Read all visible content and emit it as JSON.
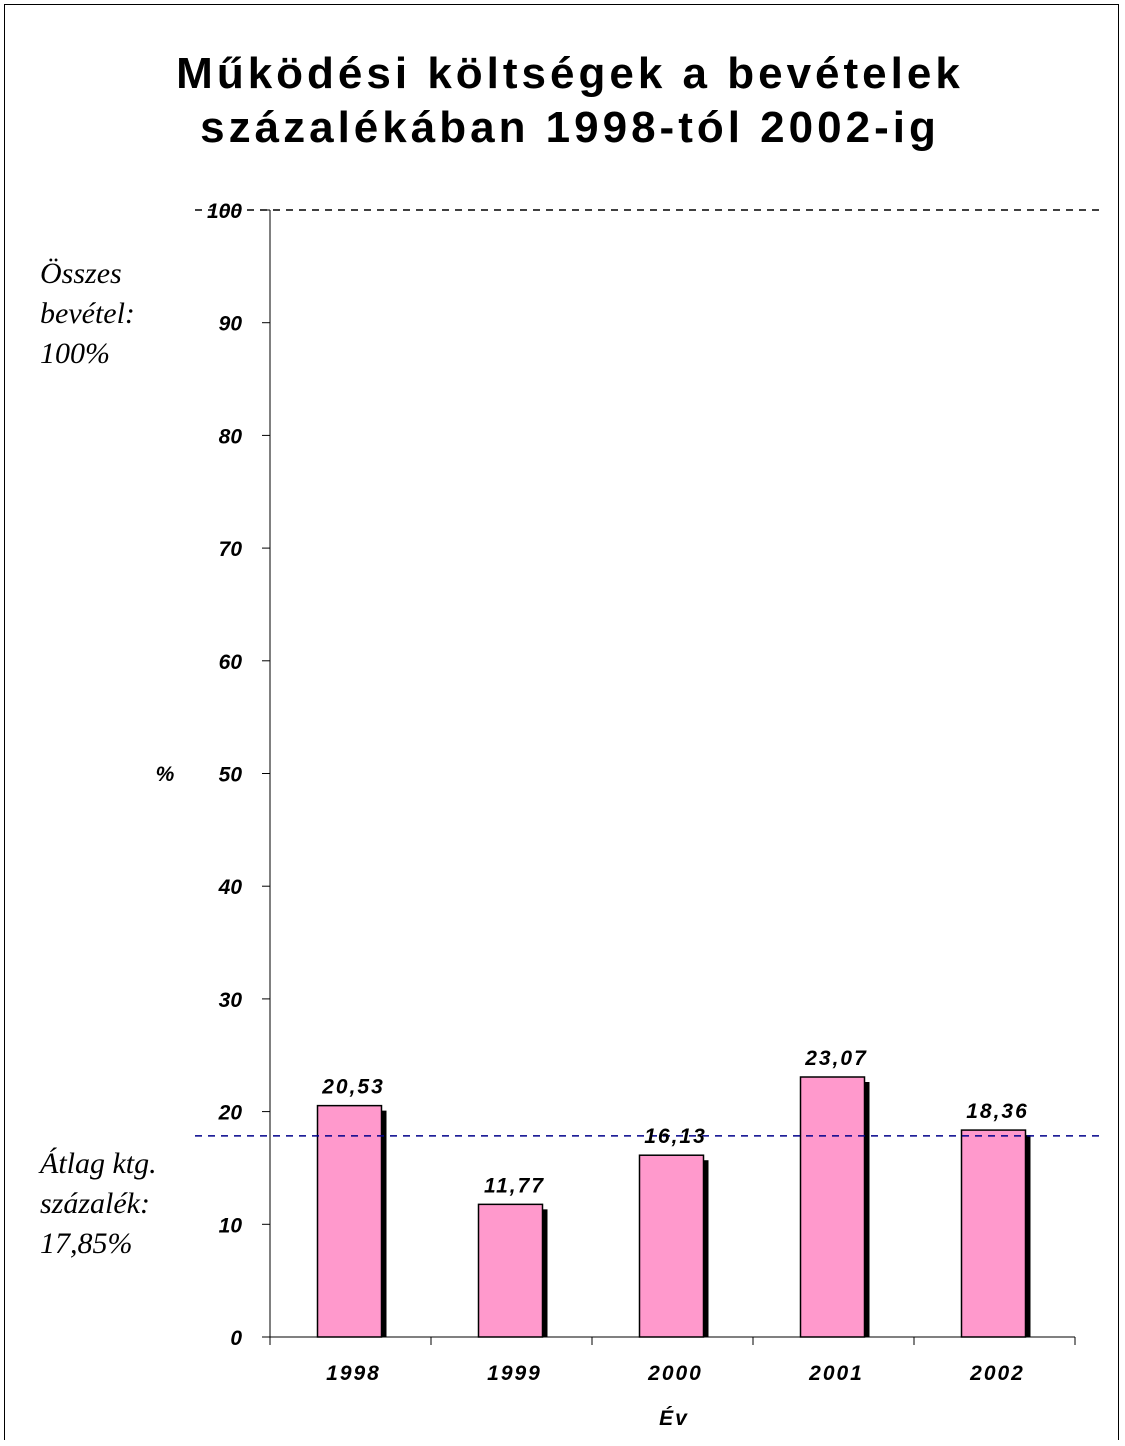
{
  "chart_data": {
    "type": "bar",
    "title_lines": [
      "Működési költségek a bevételek",
      "százalékában 1998-tól 2002-ig"
    ],
    "categories": [
      "1998",
      "1999",
      "2000",
      "2001",
      "2002"
    ],
    "values": [
      20.53,
      11.77,
      16.13,
      23.07,
      18.36
    ],
    "value_labels": [
      "20,53",
      "11,77",
      "16,13",
      "23,07",
      "18,36"
    ],
    "xlabel": "Év",
    "ylabel": "%",
    "ylim": [
      0,
      100
    ],
    "yticks": [
      0,
      10,
      20,
      30,
      40,
      50,
      60,
      70,
      80,
      90,
      100
    ],
    "reference_lines": [
      {
        "value": 100,
        "color": "#000000",
        "label_lines": [
          "Összes",
          "bevétel:",
          "100%"
        ]
      },
      {
        "value": 17.85,
        "color": "#00008b",
        "label_lines": [
          "Átlag ktg.",
          "százalék:",
          "17,85%"
        ]
      }
    ],
    "bar_color": "#ff99cc",
    "shadow_color": "#000000",
    "grid": false,
    "legend": "none"
  }
}
